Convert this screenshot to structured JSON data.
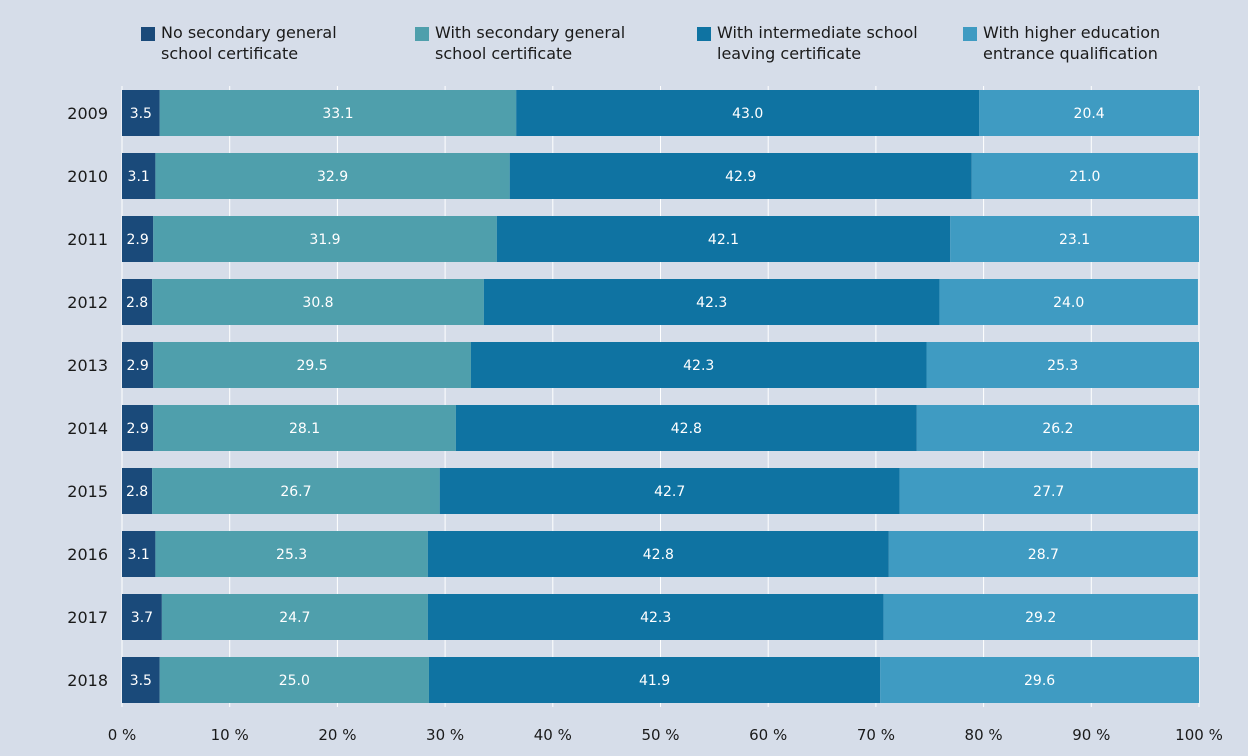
{
  "chart_data": {
    "type": "bar",
    "orientation": "horizontal",
    "stacked": true,
    "categories": [
      "2009",
      "2010",
      "2011",
      "2012",
      "2013",
      "2014",
      "2015",
      "2016",
      "2017",
      "2018"
    ],
    "series": [
      {
        "name": "No secondary general school certificate",
        "color": "#1a4a7a",
        "values": [
          3.5,
          3.1,
          2.9,
          2.8,
          2.9,
          2.9,
          2.8,
          3.1,
          3.7,
          3.5
        ]
      },
      {
        "name": "With secondary general school certificate",
        "color": "#4f9fac",
        "values": [
          33.1,
          32.9,
          31.9,
          30.8,
          29.5,
          28.1,
          26.7,
          25.3,
          24.7,
          25.0
        ]
      },
      {
        "name": "With intermediate school leaving certificate",
        "color": "#0f73a2",
        "values": [
          43.0,
          42.9,
          42.1,
          42.3,
          42.3,
          42.8,
          42.7,
          42.8,
          42.3,
          41.9
        ]
      },
      {
        "name": "With higher education entrance qualification",
        "color": "#3f9bc2",
        "values": [
          20.4,
          21.0,
          23.1,
          24.0,
          25.3,
          26.2,
          27.7,
          28.7,
          29.2,
          29.6
        ]
      }
    ],
    "legend_lines": [
      [
        "No secondary general",
        "school certificate"
      ],
      [
        "With secondary general",
        "school certificate"
      ],
      [
        "With intermediate school",
        "leaving certificate"
      ],
      [
        "With higher education",
        "entrance qualification"
      ]
    ],
    "xlim": [
      0,
      100
    ],
    "x_ticks": [
      "0 %",
      "10 %",
      "20 %",
      "30 %",
      "40 %",
      "50 %",
      "60 %",
      "70 %",
      "80 %",
      "90 %",
      "100 %"
    ],
    "grid": true,
    "legend_position": "top"
  }
}
